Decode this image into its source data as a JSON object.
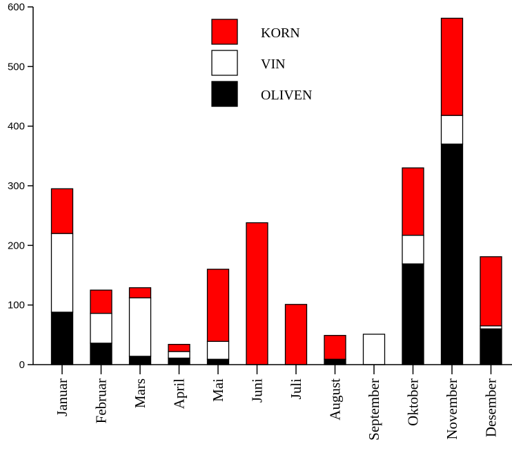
{
  "chart_data": {
    "type": "bar",
    "stacked": true,
    "categories": [
      "Januar",
      "Februar",
      "Mars",
      "April",
      "Mai",
      "Juni",
      "Juli",
      "August",
      "September",
      "Oktober",
      "November",
      "Desember"
    ],
    "series": [
      {
        "name": "OLIVEN",
        "color": "#000000",
        "values": [
          88,
          36,
          14,
          11,
          9,
          0,
          0,
          9,
          0,
          169,
          370,
          60
        ]
      },
      {
        "name": "VIN",
        "color": "#ffffff",
        "values": [
          132,
          50,
          98,
          11,
          30,
          0,
          0,
          0,
          51,
          48,
          48,
          5
        ]
      },
      {
        "name": "KORN",
        "color": "#ff0000",
        "values": [
          75,
          39,
          17,
          12,
          121,
          238,
          101,
          40,
          0,
          113,
          163,
          116
        ]
      }
    ],
    "legend_order": [
      "KORN",
      "VIN",
      "OLIVEN"
    ],
    "legend_position": "top-center",
    "title": "",
    "xlabel": "",
    "ylabel": "",
    "ylim": [
      0,
      600
    ],
    "yticks": [
      0,
      100,
      200,
      300,
      400,
      500,
      600
    ],
    "grid": false
  }
}
